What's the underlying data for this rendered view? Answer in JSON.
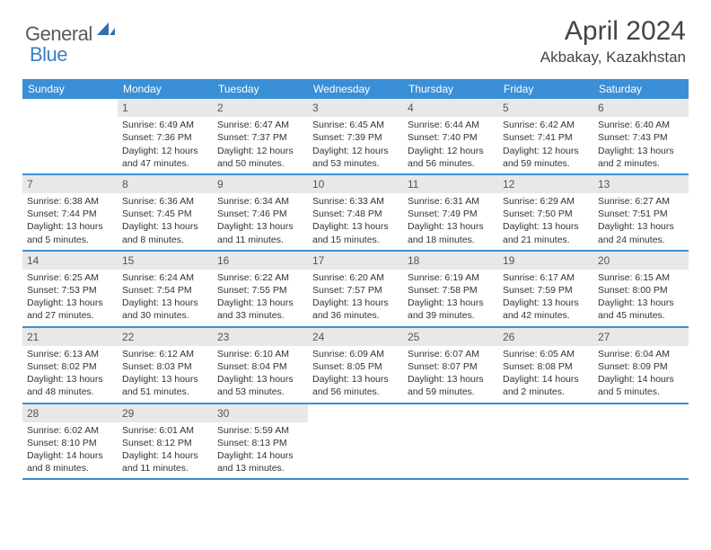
{
  "logo": {
    "part1": "General",
    "part2": "Blue"
  },
  "title": "April 2024",
  "location": "Akbakay, Kazakhstan",
  "colors": {
    "header_bg": "#3b8fd6",
    "header_fg": "#ffffff",
    "daynum_bg": "#e8e8e8",
    "daynum_fg": "#555555",
    "border": "#3b8fd6",
    "logo_gray": "#5a5a5a",
    "logo_blue": "#3b7fc4"
  },
  "day_names": [
    "Sunday",
    "Monday",
    "Tuesday",
    "Wednesday",
    "Thursday",
    "Friday",
    "Saturday"
  ],
  "weeks": [
    [
      {
        "day": "",
        "sunrise": "",
        "sunset": "",
        "daylight": ""
      },
      {
        "day": "1",
        "sunrise": "Sunrise: 6:49 AM",
        "sunset": "Sunset: 7:36 PM",
        "daylight": "Daylight: 12 hours and 47 minutes."
      },
      {
        "day": "2",
        "sunrise": "Sunrise: 6:47 AM",
        "sunset": "Sunset: 7:37 PM",
        "daylight": "Daylight: 12 hours and 50 minutes."
      },
      {
        "day": "3",
        "sunrise": "Sunrise: 6:45 AM",
        "sunset": "Sunset: 7:39 PM",
        "daylight": "Daylight: 12 hours and 53 minutes."
      },
      {
        "day": "4",
        "sunrise": "Sunrise: 6:44 AM",
        "sunset": "Sunset: 7:40 PM",
        "daylight": "Daylight: 12 hours and 56 minutes."
      },
      {
        "day": "5",
        "sunrise": "Sunrise: 6:42 AM",
        "sunset": "Sunset: 7:41 PM",
        "daylight": "Daylight: 12 hours and 59 minutes."
      },
      {
        "day": "6",
        "sunrise": "Sunrise: 6:40 AM",
        "sunset": "Sunset: 7:43 PM",
        "daylight": "Daylight: 13 hours and 2 minutes."
      }
    ],
    [
      {
        "day": "7",
        "sunrise": "Sunrise: 6:38 AM",
        "sunset": "Sunset: 7:44 PM",
        "daylight": "Daylight: 13 hours and 5 minutes."
      },
      {
        "day": "8",
        "sunrise": "Sunrise: 6:36 AM",
        "sunset": "Sunset: 7:45 PM",
        "daylight": "Daylight: 13 hours and 8 minutes."
      },
      {
        "day": "9",
        "sunrise": "Sunrise: 6:34 AM",
        "sunset": "Sunset: 7:46 PM",
        "daylight": "Daylight: 13 hours and 11 minutes."
      },
      {
        "day": "10",
        "sunrise": "Sunrise: 6:33 AM",
        "sunset": "Sunset: 7:48 PM",
        "daylight": "Daylight: 13 hours and 15 minutes."
      },
      {
        "day": "11",
        "sunrise": "Sunrise: 6:31 AM",
        "sunset": "Sunset: 7:49 PM",
        "daylight": "Daylight: 13 hours and 18 minutes."
      },
      {
        "day": "12",
        "sunrise": "Sunrise: 6:29 AM",
        "sunset": "Sunset: 7:50 PM",
        "daylight": "Daylight: 13 hours and 21 minutes."
      },
      {
        "day": "13",
        "sunrise": "Sunrise: 6:27 AM",
        "sunset": "Sunset: 7:51 PM",
        "daylight": "Daylight: 13 hours and 24 minutes."
      }
    ],
    [
      {
        "day": "14",
        "sunrise": "Sunrise: 6:25 AM",
        "sunset": "Sunset: 7:53 PM",
        "daylight": "Daylight: 13 hours and 27 minutes."
      },
      {
        "day": "15",
        "sunrise": "Sunrise: 6:24 AM",
        "sunset": "Sunset: 7:54 PM",
        "daylight": "Daylight: 13 hours and 30 minutes."
      },
      {
        "day": "16",
        "sunrise": "Sunrise: 6:22 AM",
        "sunset": "Sunset: 7:55 PM",
        "daylight": "Daylight: 13 hours and 33 minutes."
      },
      {
        "day": "17",
        "sunrise": "Sunrise: 6:20 AM",
        "sunset": "Sunset: 7:57 PM",
        "daylight": "Daylight: 13 hours and 36 minutes."
      },
      {
        "day": "18",
        "sunrise": "Sunrise: 6:19 AM",
        "sunset": "Sunset: 7:58 PM",
        "daylight": "Daylight: 13 hours and 39 minutes."
      },
      {
        "day": "19",
        "sunrise": "Sunrise: 6:17 AM",
        "sunset": "Sunset: 7:59 PM",
        "daylight": "Daylight: 13 hours and 42 minutes."
      },
      {
        "day": "20",
        "sunrise": "Sunrise: 6:15 AM",
        "sunset": "Sunset: 8:00 PM",
        "daylight": "Daylight: 13 hours and 45 minutes."
      }
    ],
    [
      {
        "day": "21",
        "sunrise": "Sunrise: 6:13 AM",
        "sunset": "Sunset: 8:02 PM",
        "daylight": "Daylight: 13 hours and 48 minutes."
      },
      {
        "day": "22",
        "sunrise": "Sunrise: 6:12 AM",
        "sunset": "Sunset: 8:03 PM",
        "daylight": "Daylight: 13 hours and 51 minutes."
      },
      {
        "day": "23",
        "sunrise": "Sunrise: 6:10 AM",
        "sunset": "Sunset: 8:04 PM",
        "daylight": "Daylight: 13 hours and 53 minutes."
      },
      {
        "day": "24",
        "sunrise": "Sunrise: 6:09 AM",
        "sunset": "Sunset: 8:05 PM",
        "daylight": "Daylight: 13 hours and 56 minutes."
      },
      {
        "day": "25",
        "sunrise": "Sunrise: 6:07 AM",
        "sunset": "Sunset: 8:07 PM",
        "daylight": "Daylight: 13 hours and 59 minutes."
      },
      {
        "day": "26",
        "sunrise": "Sunrise: 6:05 AM",
        "sunset": "Sunset: 8:08 PM",
        "daylight": "Daylight: 14 hours and 2 minutes."
      },
      {
        "day": "27",
        "sunrise": "Sunrise: 6:04 AM",
        "sunset": "Sunset: 8:09 PM",
        "daylight": "Daylight: 14 hours and 5 minutes."
      }
    ],
    [
      {
        "day": "28",
        "sunrise": "Sunrise: 6:02 AM",
        "sunset": "Sunset: 8:10 PM",
        "daylight": "Daylight: 14 hours and 8 minutes."
      },
      {
        "day": "29",
        "sunrise": "Sunrise: 6:01 AM",
        "sunset": "Sunset: 8:12 PM",
        "daylight": "Daylight: 14 hours and 11 minutes."
      },
      {
        "day": "30",
        "sunrise": "Sunrise: 5:59 AM",
        "sunset": "Sunset: 8:13 PM",
        "daylight": "Daylight: 14 hours and 13 minutes."
      },
      {
        "day": "",
        "sunrise": "",
        "sunset": "",
        "daylight": ""
      },
      {
        "day": "",
        "sunrise": "",
        "sunset": "",
        "daylight": ""
      },
      {
        "day": "",
        "sunrise": "",
        "sunset": "",
        "daylight": ""
      },
      {
        "day": "",
        "sunrise": "",
        "sunset": "",
        "daylight": ""
      }
    ]
  ]
}
